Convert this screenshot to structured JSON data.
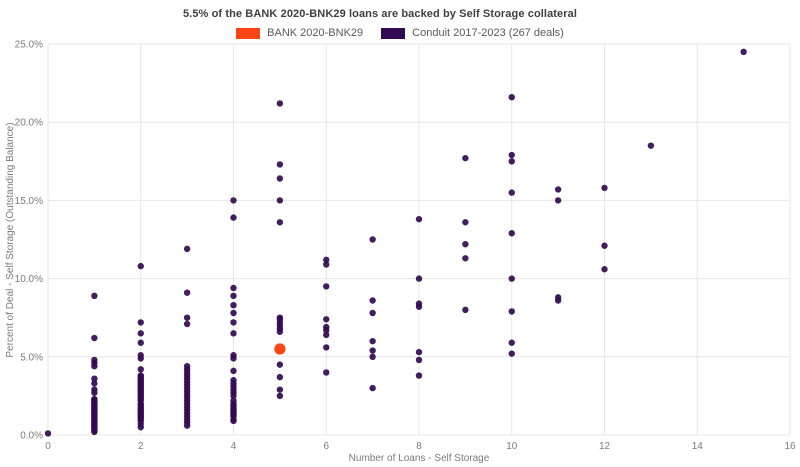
{
  "chart_data": {
    "type": "scatter",
    "title": "5.5% of the BANK 2020-BNK29 loans are backed by Self Storage collateral",
    "xlabel": "Number of Loans - Self Storage",
    "ylabel": "Percent of Deal - Self Storage (Outstanding Balance)",
    "xlim": [
      0,
      16
    ],
    "ylim": [
      0,
      25
    ],
    "x_ticks": [
      "0",
      "2",
      "4",
      "6",
      "8",
      "10",
      "12",
      "14",
      "16"
    ],
    "x_tick_values": [
      0,
      2,
      4,
      6,
      8,
      10,
      12,
      14,
      16
    ],
    "y_ticks": [
      "0.0%",
      "5.0%",
      "10.0%",
      "15.0%",
      "20.0%",
      "25.0%"
    ],
    "y_tick_values": [
      0,
      5,
      10,
      15,
      20,
      25
    ],
    "grid": true,
    "legend_position": "top-center",
    "colors": {
      "grid": "#e7e7e7",
      "tick_label": "#7b7b7b",
      "axis_title": "#7b7b7b",
      "title_text": "#3f3f3f",
      "legend_text": "#5a5a5a"
    },
    "series": [
      {
        "name": "BANK 2020-BNK29",
        "color": "#fa4616",
        "marker_size": 5.6,
        "points": [
          [
            5,
            5.5
          ]
        ]
      },
      {
        "name": "Conduit 2017-2023 (267 deals)",
        "color": "#330a53",
        "marker_size": 3.2,
        "points": [
          [
            0,
            0.1
          ],
          [
            1,
            8.9
          ],
          [
            1,
            6.2
          ],
          [
            1,
            4.8
          ],
          [
            1,
            4.6
          ],
          [
            1,
            4.4
          ],
          [
            1,
            3.6
          ],
          [
            1,
            3.3
          ],
          [
            1,
            2.9
          ],
          [
            1,
            2.7
          ],
          [
            1,
            2.3
          ],
          [
            1,
            2.25
          ],
          [
            1,
            2.2
          ],
          [
            1,
            2.1
          ],
          [
            1,
            2.05
          ],
          [
            1,
            2.0
          ],
          [
            1,
            1.9
          ],
          [
            1,
            1.85
          ],
          [
            1,
            1.8
          ],
          [
            1,
            1.7
          ],
          [
            1,
            1.65
          ],
          [
            1,
            1.6
          ],
          [
            1,
            1.5
          ],
          [
            1,
            1.45
          ],
          [
            1,
            1.4
          ],
          [
            1,
            1.3
          ],
          [
            1,
            1.25
          ],
          [
            1,
            1.2
          ],
          [
            1,
            1.1
          ],
          [
            1,
            1.05
          ],
          [
            1,
            1.0
          ],
          [
            1,
            0.9
          ],
          [
            1,
            0.85
          ],
          [
            1,
            0.8
          ],
          [
            1,
            0.7
          ],
          [
            1,
            0.65
          ],
          [
            1,
            0.6
          ],
          [
            1,
            0.5
          ],
          [
            1,
            0.45
          ],
          [
            1,
            0.4
          ],
          [
            1,
            0.3
          ],
          [
            1,
            0.2
          ],
          [
            2,
            10.8
          ],
          [
            2,
            7.2
          ],
          [
            2,
            6.5
          ],
          [
            2,
            5.9
          ],
          [
            2,
            5.1
          ],
          [
            2,
            4.9
          ],
          [
            2,
            4.2
          ],
          [
            2,
            3.8
          ],
          [
            2,
            3.7
          ],
          [
            2,
            3.6
          ],
          [
            2,
            3.5
          ],
          [
            2,
            3.4
          ],
          [
            2,
            3.3
          ],
          [
            2,
            3.2
          ],
          [
            2,
            3.1
          ],
          [
            2,
            3.0
          ],
          [
            2,
            2.9
          ],
          [
            2,
            2.8
          ],
          [
            2,
            2.7
          ],
          [
            2,
            2.6
          ],
          [
            2,
            2.5
          ],
          [
            2,
            2.4
          ],
          [
            2,
            2.3
          ],
          [
            2,
            2.2
          ],
          [
            2,
            2.0
          ],
          [
            2,
            1.9
          ],
          [
            2,
            1.8
          ],
          [
            2,
            1.7
          ],
          [
            2,
            1.6
          ],
          [
            2,
            1.5
          ],
          [
            2,
            1.4
          ],
          [
            2,
            1.3
          ],
          [
            2,
            1.2
          ],
          [
            2,
            1.1
          ],
          [
            2,
            1.0
          ],
          [
            2,
            0.9
          ],
          [
            2,
            0.7
          ],
          [
            2,
            0.5
          ],
          [
            3,
            11.9
          ],
          [
            3,
            9.1
          ],
          [
            3,
            7.5
          ],
          [
            3,
            7.1
          ],
          [
            3,
            4.4
          ],
          [
            3,
            4.2
          ],
          [
            3,
            4.0
          ],
          [
            3,
            3.8
          ],
          [
            3,
            3.6
          ],
          [
            3,
            3.4
          ],
          [
            3,
            3.2
          ],
          [
            3,
            3.0
          ],
          [
            3,
            2.8
          ],
          [
            3,
            2.6
          ],
          [
            3,
            2.4
          ],
          [
            3,
            2.2
          ],
          [
            3,
            2.0
          ],
          [
            3,
            1.8
          ],
          [
            3,
            1.6
          ],
          [
            3,
            1.4
          ],
          [
            3,
            1.2
          ],
          [
            3,
            1.0
          ],
          [
            3,
            0.8
          ],
          [
            3,
            0.6
          ],
          [
            4,
            15.0
          ],
          [
            4,
            13.9
          ],
          [
            4,
            9.4
          ],
          [
            4,
            8.9
          ],
          [
            4,
            8.3
          ],
          [
            4,
            7.8
          ],
          [
            4,
            7.2
          ],
          [
            4,
            6.5
          ],
          [
            4,
            5.1
          ],
          [
            4,
            4.9
          ],
          [
            4,
            4.1
          ],
          [
            4,
            3.5
          ],
          [
            4,
            3.3
          ],
          [
            4,
            3.1
          ],
          [
            4,
            2.9
          ],
          [
            4,
            2.7
          ],
          [
            4,
            2.5
          ],
          [
            4,
            2.2
          ],
          [
            4,
            2.0
          ],
          [
            4,
            1.9
          ],
          [
            4,
            1.8
          ],
          [
            4,
            1.7
          ],
          [
            4,
            1.6
          ],
          [
            4,
            1.5
          ],
          [
            4,
            1.4
          ],
          [
            4,
            1.3
          ],
          [
            4,
            1.2
          ],
          [
            4,
            1.0
          ],
          [
            4,
            0.9
          ],
          [
            5,
            21.2
          ],
          [
            5,
            17.3
          ],
          [
            5,
            16.4
          ],
          [
            5,
            15.0
          ],
          [
            5,
            13.6
          ],
          [
            5,
            7.5
          ],
          [
            5,
            7.4
          ],
          [
            5,
            7.2
          ],
          [
            5,
            7.0
          ],
          [
            5,
            6.8
          ],
          [
            5,
            6.6
          ],
          [
            5,
            4.5
          ],
          [
            5,
            3.7
          ],
          [
            5,
            2.9
          ],
          [
            5,
            2.5
          ],
          [
            6,
            11.2
          ],
          [
            6,
            10.9
          ],
          [
            6,
            9.5
          ],
          [
            6,
            7.4
          ],
          [
            6,
            6.9
          ],
          [
            6,
            6.7
          ],
          [
            6,
            6.4
          ],
          [
            6,
            5.6
          ],
          [
            6,
            4.0
          ],
          [
            7,
            12.5
          ],
          [
            7,
            8.6
          ],
          [
            7,
            7.8
          ],
          [
            7,
            6.0
          ],
          [
            7,
            5.4
          ],
          [
            7,
            5.0
          ],
          [
            7,
            3.0
          ],
          [
            8,
            13.8
          ],
          [
            8,
            10.0
          ],
          [
            8,
            8.4
          ],
          [
            8,
            8.2
          ],
          [
            8,
            5.3
          ],
          [
            8,
            4.8
          ],
          [
            8,
            3.8
          ],
          [
            9,
            17.7
          ],
          [
            9,
            13.6
          ],
          [
            9,
            12.2
          ],
          [
            9,
            11.3
          ],
          [
            9,
            8.0
          ],
          [
            10,
            21.6
          ],
          [
            10,
            17.9
          ],
          [
            10,
            17.5
          ],
          [
            10,
            15.5
          ],
          [
            10,
            12.9
          ],
          [
            10,
            10.0
          ],
          [
            10,
            7.9
          ],
          [
            10,
            5.9
          ],
          [
            10,
            5.2
          ],
          [
            11,
            15.7
          ],
          [
            11,
            15.0
          ],
          [
            11,
            8.8
          ],
          [
            11,
            8.6
          ],
          [
            12,
            15.8
          ],
          [
            12,
            12.1
          ],
          [
            12,
            10.6
          ],
          [
            13,
            18.5
          ],
          [
            15,
            24.5
          ]
        ]
      }
    ]
  }
}
